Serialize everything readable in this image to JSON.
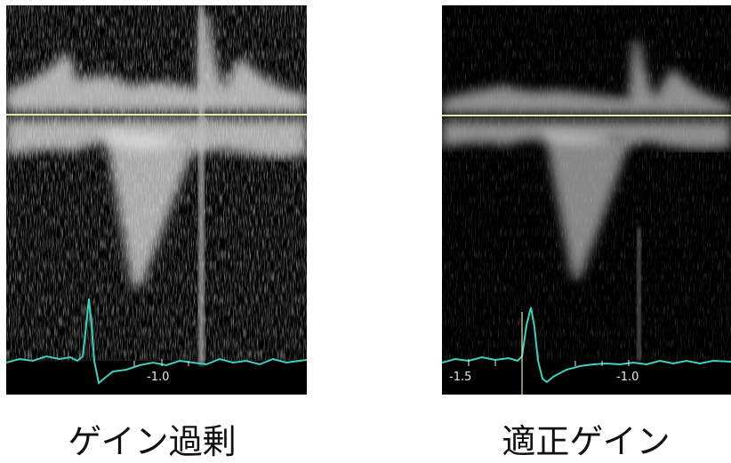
{
  "panels": [
    {
      "caption": "ゲイン過剰",
      "tick_labels": [
        "-1.0"
      ]
    },
    {
      "caption": "適正ゲイン",
      "tick_labels": [
        "-1.5",
        "-1.0"
      ]
    }
  ],
  "colors": {
    "baseline": "#e7e6a6",
    "ecg_trace": "#3fd0bd",
    "background": "#000000"
  }
}
